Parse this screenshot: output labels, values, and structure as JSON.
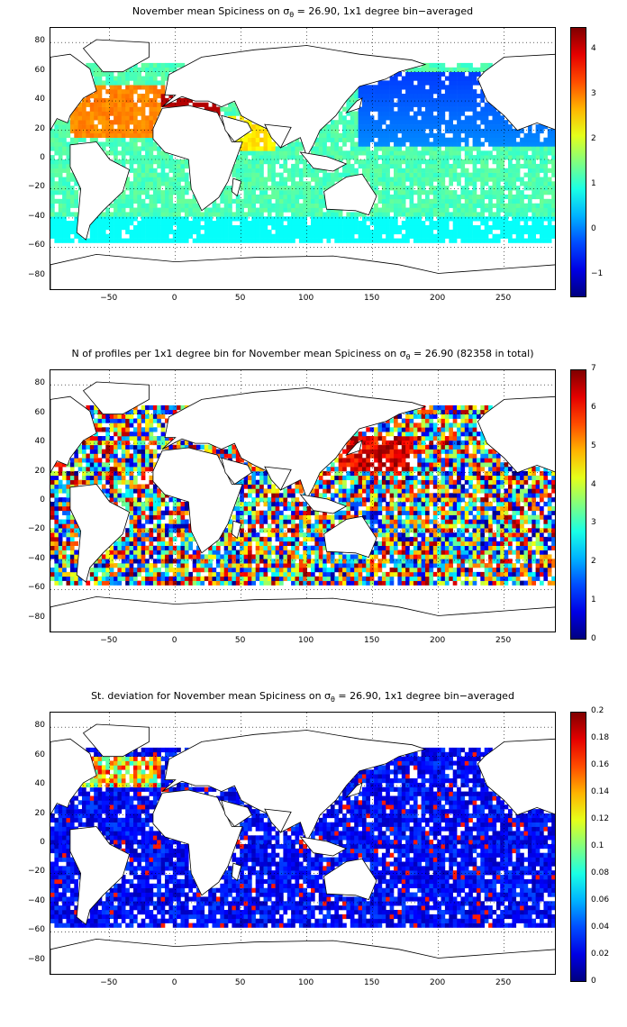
{
  "panels": [
    {
      "id": "spiciness",
      "title_prefix": "November mean Spiciness on σ",
      "title_sub": "θ",
      "title_suffix": " = 26.90, 1x1 degree bin−averaged",
      "colorbar_ticks": [
        "4",
        "3",
        "2",
        "1",
        "0",
        "−1"
      ],
      "colorbar_range": [
        -1.5,
        4.5
      ]
    },
    {
      "id": "profiles",
      "title_prefix": "N of profiles per 1x1 degree bin for November mean Spiciness on σ",
      "title_sub": "θ",
      "title_suffix": " = 26.90 (82358 in total)",
      "colorbar_ticks": [
        "7",
        "6",
        "5",
        "4",
        "3",
        "2",
        "1",
        "0"
      ],
      "colorbar_range": [
        0,
        7
      ]
    },
    {
      "id": "stdev",
      "title_prefix": "St. deviation for November mean Spiciness on σ",
      "title_sub": "θ",
      "title_suffix": " = 26.90, 1x1 degree bin−averaged",
      "colorbar_ticks": [
        "0.2",
        "0.18",
        "0.16",
        "0.14",
        "0.12",
        "0.1",
        "0.08",
        "0.06",
        "0.04",
        "0.02",
        "0"
      ],
      "colorbar_range": [
        0,
        0.2
      ]
    }
  ],
  "axes": {
    "x_ticks": [
      "−50",
      "0",
      "50",
      "100",
      "150",
      "200",
      "250"
    ],
    "y_ticks": [
      "80",
      "60",
      "40",
      "20",
      "0",
      "−20",
      "−40",
      "−60",
      "−80"
    ],
    "x_range": [
      -95,
      290
    ],
    "y_range": [
      -90,
      90
    ]
  },
  "colors": {
    "jet_low": "#00008f",
    "jet_mid": "#7fff7f",
    "jet_high": "#800000"
  }
}
